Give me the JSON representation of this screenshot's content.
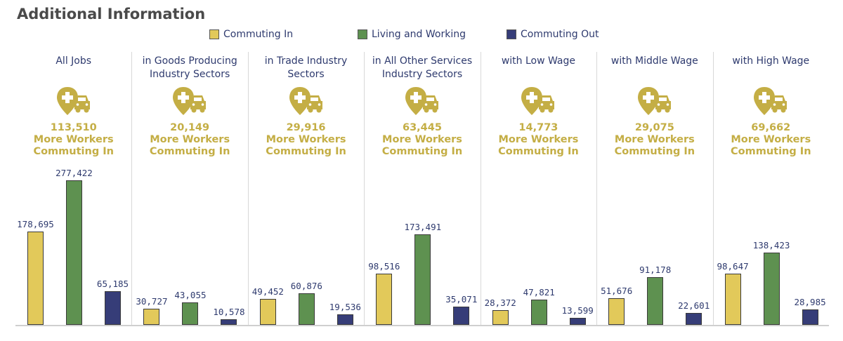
{
  "title": "Additional Information",
  "colors": {
    "commuting_in": "#e2c95a",
    "living_working": "#5e9150",
    "commuting_out": "#363d78",
    "accent_text": "#c4ae45"
  },
  "legend": [
    "Commuting In",
    "Living and Working",
    "Commuting Out"
  ],
  "icon": "pin-car-icon",
  "chart_data": {
    "type": "bar",
    "ylim": [
      0,
      277422
    ],
    "series_names": [
      "Commuting In",
      "Living and Working",
      "Commuting Out"
    ],
    "panels": [
      {
        "title": [
          "All Jobs"
        ],
        "net": "113,510",
        "net_line1": "More Workers",
        "net_line2": "Commuting In",
        "values": [
          178695,
          277422,
          65185
        ],
        "labels": [
          "178,695",
          "277,422",
          "65,185"
        ]
      },
      {
        "title": [
          "in Goods Producing",
          "Industry Sectors"
        ],
        "net": "20,149",
        "net_line1": "More Workers",
        "net_line2": "Commuting In",
        "values": [
          30727,
          43055,
          10578
        ],
        "labels": [
          "30,727",
          "43,055",
          "10,578"
        ]
      },
      {
        "title": [
          "in Trade Industry",
          "Sectors"
        ],
        "net": "29,916",
        "net_line1": "More Workers",
        "net_line2": "Commuting In",
        "values": [
          49452,
          60876,
          19536
        ],
        "labels": [
          "49,452",
          "60,876",
          "19,536"
        ]
      },
      {
        "title": [
          "in All Other Services",
          "Industry Sectors"
        ],
        "net": "63,445",
        "net_line1": "More Workers",
        "net_line2": "Commuting In",
        "values": [
          98516,
          173491,
          35071
        ],
        "labels": [
          "98,516",
          "173,491",
          "35,071"
        ]
      },
      {
        "title": [
          "with Low Wage"
        ],
        "net": "14,773",
        "net_line1": "More Workers",
        "net_line2": "Commuting In",
        "values": [
          28372,
          47821,
          13599
        ],
        "labels": [
          "28,372",
          "47,821",
          "13,599"
        ]
      },
      {
        "title": [
          "with Middle Wage"
        ],
        "net": "29,075",
        "net_line1": "More Workers",
        "net_line2": "Commuting In",
        "values": [
          51676,
          91178,
          22601
        ],
        "labels": [
          "51,676",
          "91,178",
          "22,601"
        ]
      },
      {
        "title": [
          "with High Wage"
        ],
        "net": "69,662",
        "net_line1": "More Workers",
        "net_line2": "Commuting In",
        "values": [
          98647,
          138423,
          28985
        ],
        "labels": [
          "98,647",
          "138,423",
          "28,985"
        ]
      }
    ]
  }
}
